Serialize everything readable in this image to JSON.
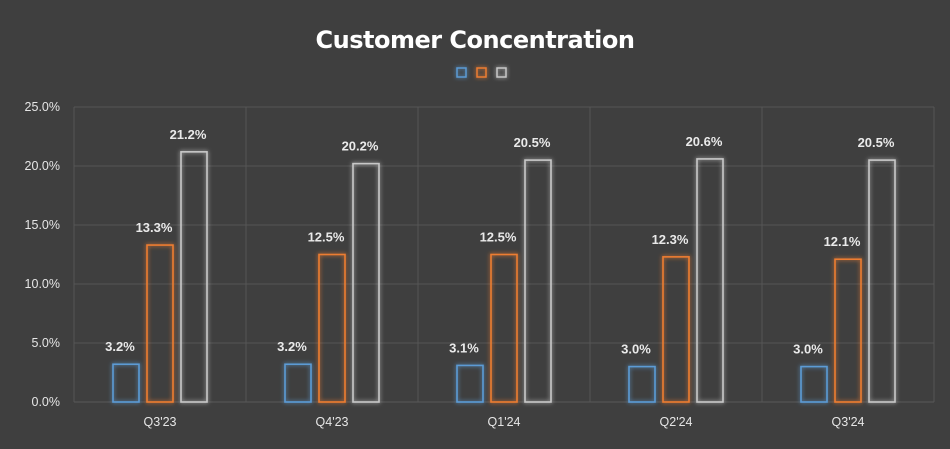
{
  "chart_data": {
    "type": "bar",
    "title": "Customer Concentration",
    "categories": [
      "Q3'23",
      "Q4'23",
      "Q1'24",
      "Q2'24",
      "Q3'24"
    ],
    "series": [
      {
        "values": [
          3.2,
          3.2,
          3.1,
          3.0,
          3.0
        ],
        "color": "#5b9bd5",
        "labels": [
          "3.2%",
          "3.2%",
          "3.1%",
          "3.0%",
          "3.0%"
        ]
      },
      {
        "values": [
          13.3,
          12.5,
          12.5,
          12.3,
          12.1
        ],
        "color": "#ed7d31",
        "labels": [
          "13.3%",
          "12.5%",
          "12.5%",
          "12.3%",
          "12.1%"
        ]
      },
      {
        "values": [
          21.2,
          20.2,
          20.5,
          20.6,
          20.5
        ],
        "color": "#c8c8c8",
        "labels": [
          "21.2%",
          "20.2%",
          "20.5%",
          "20.6%",
          "20.5%"
        ]
      }
    ],
    "ylim": [
      0,
      25
    ],
    "yticks": [
      "0.0%",
      "5.0%",
      "10.0%",
      "15.0%",
      "20.0%",
      "25.0%"
    ],
    "xlabel": "",
    "ylabel": "",
    "grid": true,
    "legend": "top-center",
    "bar_style": "outlined-glow"
  }
}
